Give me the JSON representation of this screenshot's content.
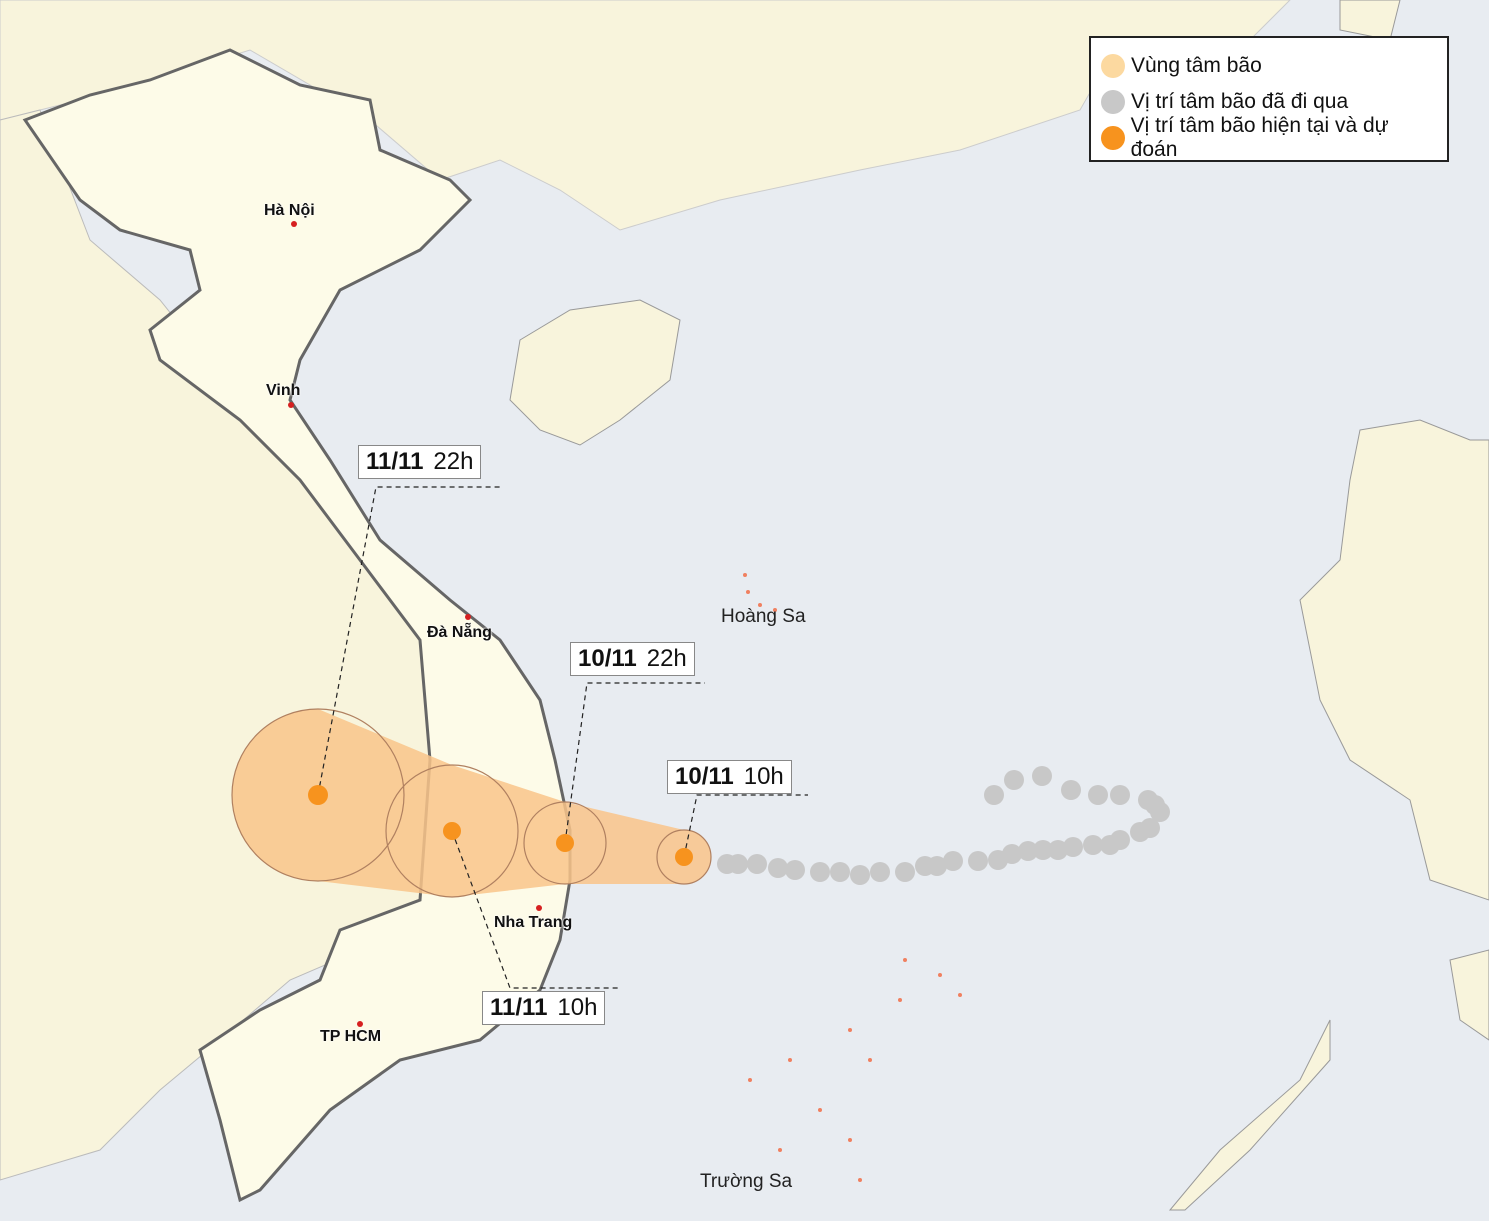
{
  "legend": {
    "items": [
      {
        "label": "Vùng tâm bão",
        "color": "#fcd9a0"
      },
      {
        "label": "Vị trí tâm bão đã đi qua",
        "color": "#c8c8c8"
      },
      {
        "label": "Vị trí tâm bão hiện tại và dự đoán",
        "color": "#f7931e"
      }
    ]
  },
  "cities": [
    "Hà Nội",
    "Vinh",
    "Đà Nẵng",
    "Nha Trang",
    "TP HCM"
  ],
  "places": [
    "Hoàng Sa",
    "Trường Sa"
  ],
  "forecast": [
    {
      "date": "10/11",
      "hour": "10h"
    },
    {
      "date": "10/11",
      "hour": "22h"
    },
    {
      "date": "11/11",
      "hour": "10h"
    },
    {
      "date": "11/11",
      "hour": "22h"
    }
  ],
  "colors": {
    "sea": "#e8ecf1",
    "land": "#f8f4dc",
    "vietnam": "#fdfbe8",
    "cone": "#f9c48a",
    "past": "#c8c8c8",
    "current": "#f7931e",
    "city_dot": "#d62020"
  }
}
